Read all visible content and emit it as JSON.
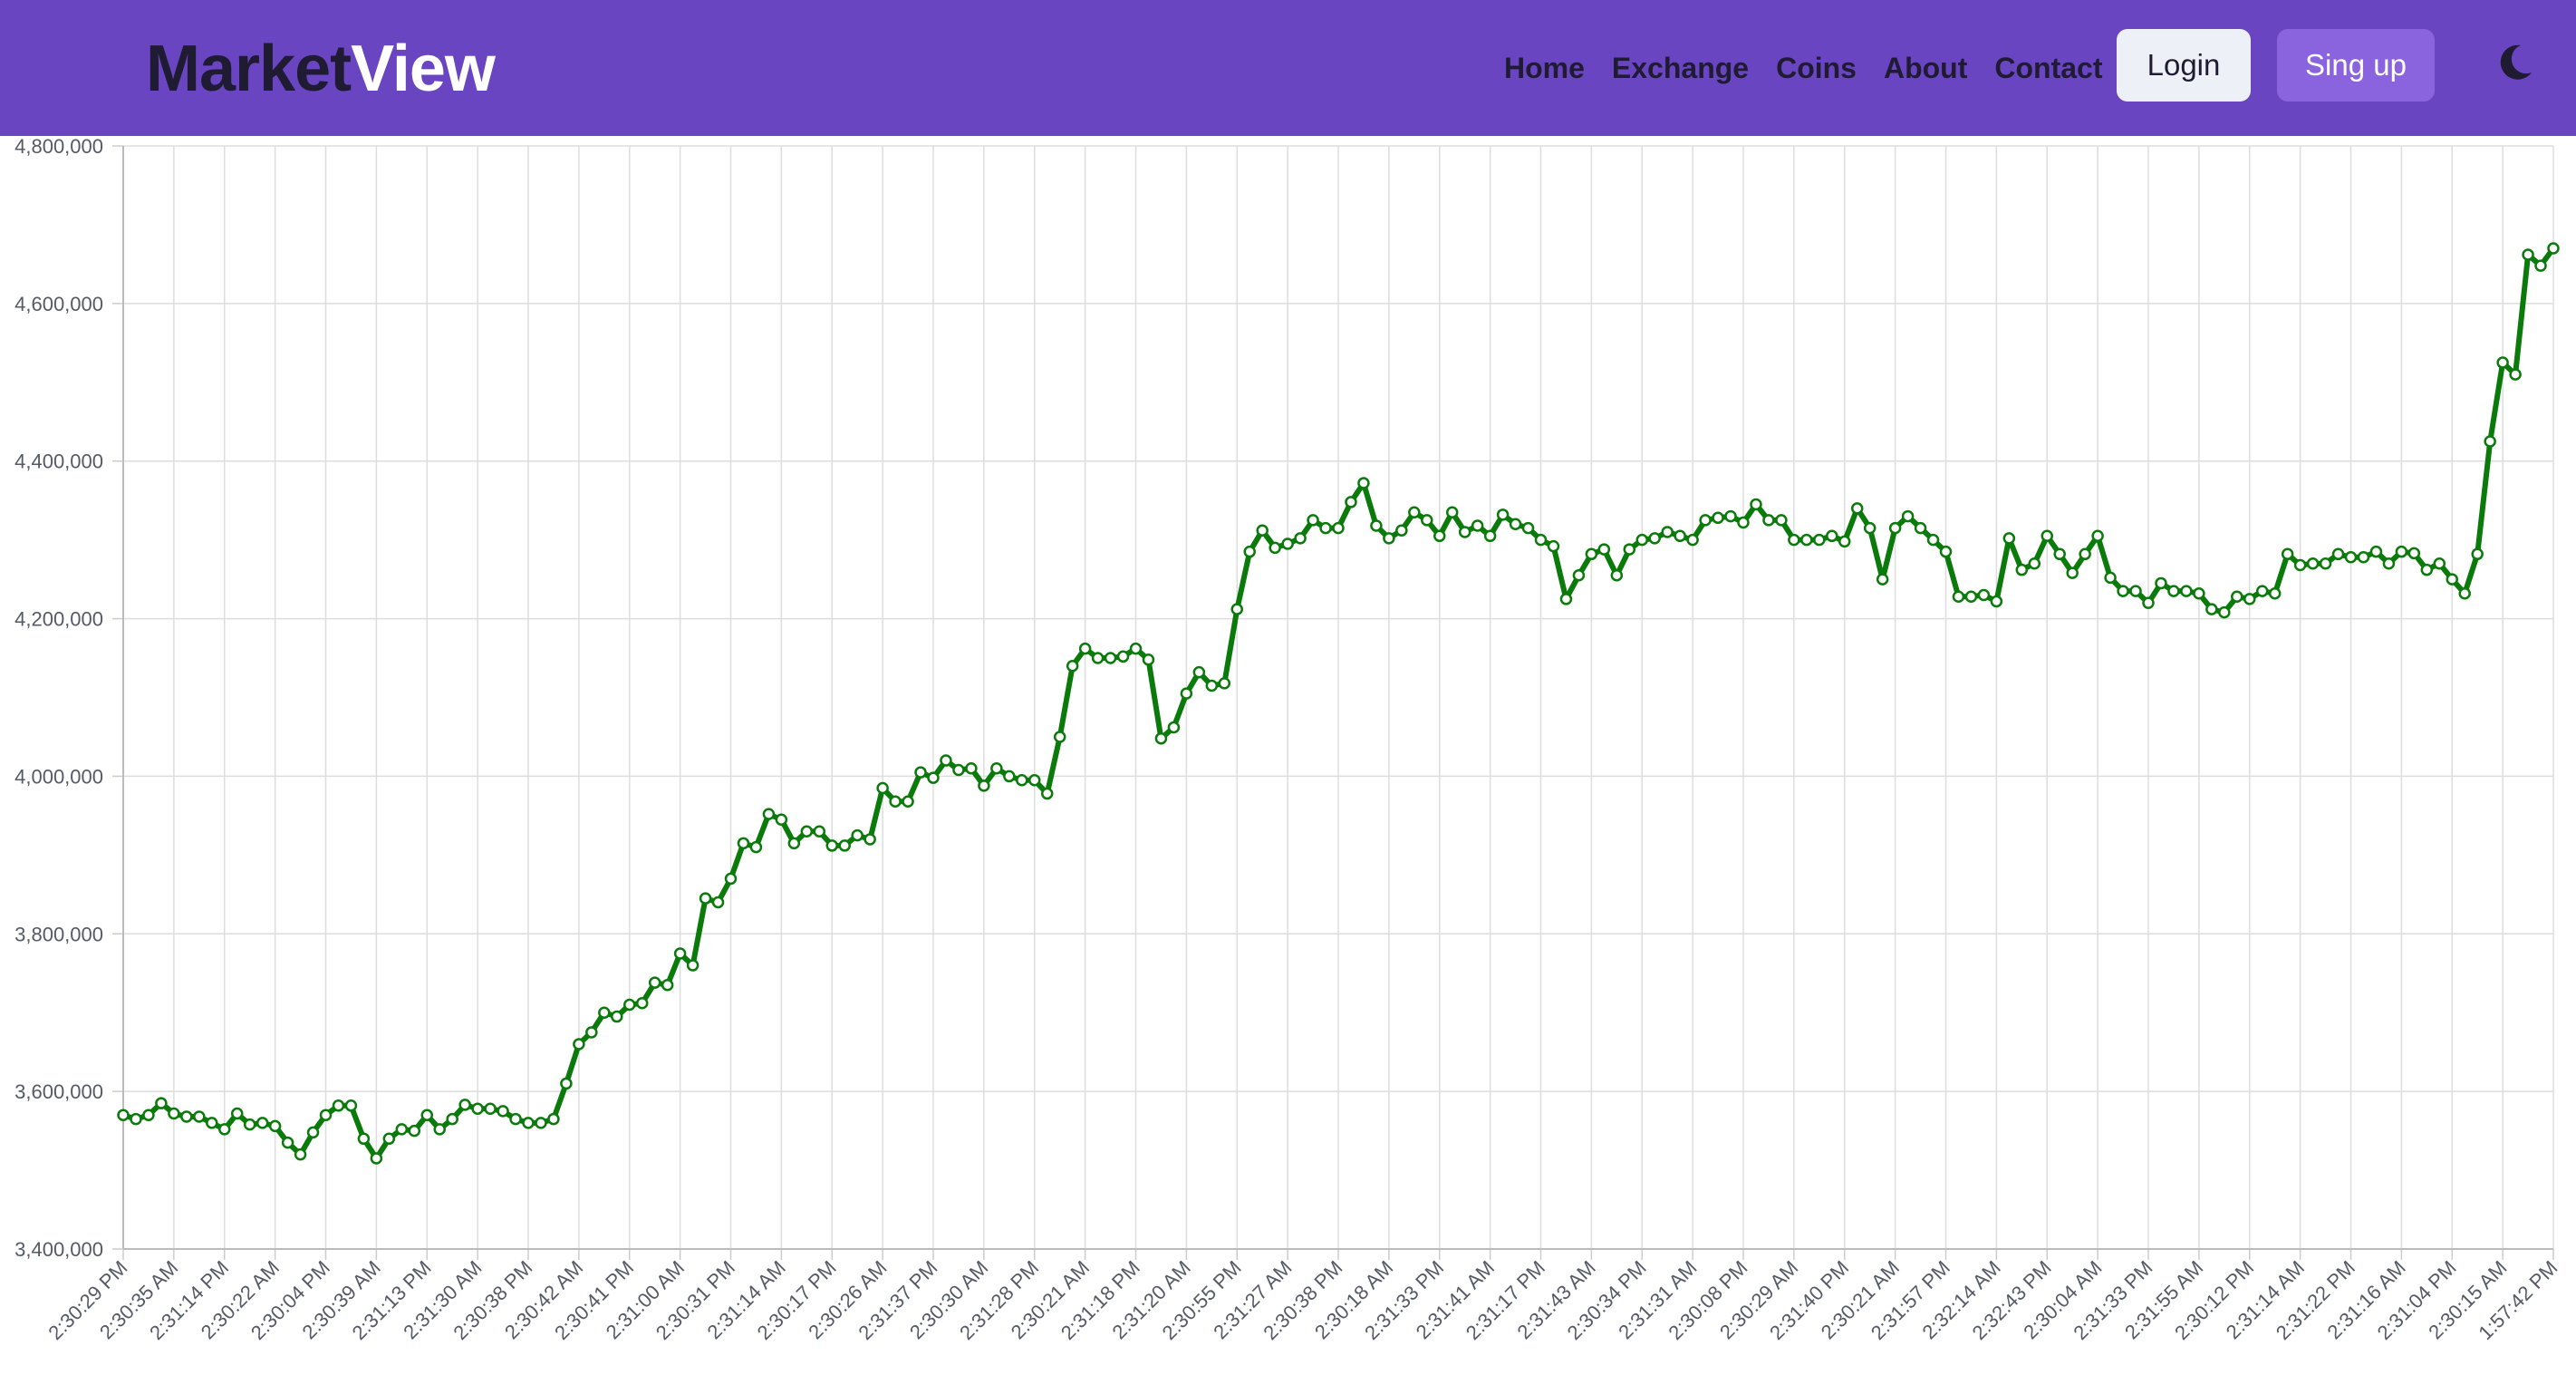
{
  "navbar": {
    "brand_part1": "Market",
    "brand_part2": "View",
    "links": [
      "Home",
      "Exchange",
      "Coins",
      "About",
      "Contact"
    ],
    "login_label": "Login",
    "signup_label": "Sing up",
    "theme_icon": "moon-icon"
  },
  "colors": {
    "navbar_bg": "#6a45c2",
    "line": "#0a7a0a",
    "brand_dark": "#1f1b33"
  },
  "chart_data": {
    "type": "line",
    "title": "",
    "xlabel": "",
    "ylabel": "",
    "ylim": [
      3400000,
      4800000
    ],
    "yticks": [
      3400000,
      3600000,
      3800000,
      4000000,
      4200000,
      4400000,
      4600000,
      4800000
    ],
    "ytick_labels": [
      "3,400,000",
      "3,600,000",
      "3,800,000",
      "4,000,000",
      "4,200,000",
      "4,400,000",
      "4,600,000",
      "4,800,000"
    ],
    "grid": true,
    "xtick_labels": [
      "2:30:29 PM",
      "2:30:35 AM",
      "2:31:14 PM",
      "2:30:22 AM",
      "2:30:04 PM",
      "2:30:39 AM",
      "2:31:13 PM",
      "2:31:30 AM",
      "2:30:38 PM",
      "2:30:42 AM",
      "2:30:41 PM",
      "2:31:00 AM",
      "2:30:31 PM",
      "2:31:14 AM",
      "2:30:17 PM",
      "2:30:26 AM",
      "2:31:37 PM",
      "2:30:30 AM",
      "2:31:28 PM",
      "2:30:21 AM",
      "2:31:18 PM",
      "2:31:20 AM",
      "2:30:55 PM",
      "2:31:27 AM",
      "2:30:38 PM",
      "2:30:18 AM",
      "2:31:33 PM",
      "2:31:41 AM",
      "2:31:17 PM",
      "2:31:43 AM",
      "2:30:34 PM",
      "2:31:31 AM",
      "2:30:08 PM",
      "2:30:29 AM",
      "2:31:40 PM",
      "2:30:21 AM",
      "2:31:57 PM",
      "2:32:14 AM",
      "2:32:43 PM",
      "2:30:04 AM",
      "2:31:33 PM",
      "2:31:55 AM",
      "2:30:12 PM",
      "2:31:14 AM",
      "2:31:22 PM",
      "2:31:16 AM",
      "2:31:04 PM",
      "2:30:15 AM",
      "1:57:42 PM"
    ],
    "series": [
      {
        "values": [
          3570000,
          3565000,
          3570000,
          3585000,
          3572000,
          3568000,
          3568000,
          3560000,
          3552000,
          3572000,
          3558000,
          3560000,
          3556000,
          3535000,
          3520000,
          3548000,
          3570000,
          3582000,
          3582000,
          3540000,
          3515000,
          3540000,
          3552000,
          3550000,
          3570000,
          3552000,
          3565000,
          3583000,
          3578000,
          3578000,
          3575000,
          3565000,
          3560000,
          3560000,
          3565000,
          3610000,
          3660000,
          3675000,
          3700000,
          3695000,
          3710000,
          3712000,
          3738000,
          3735000,
          3775000,
          3760000,
          3845000,
          3840000,
          3870000,
          3915000,
          3910000,
          3952000,
          3945000,
          3915000,
          3930000,
          3930000,
          3912000,
          3912000,
          3925000,
          3920000,
          3985000,
          3968000,
          3968000,
          4005000,
          3998000,
          4020000,
          4008000,
          4010000,
          3988000,
          4010000,
          4000000,
          3995000,
          3995000,
          3978000,
          4050000,
          4140000,
          4162000,
          4150000,
          4150000,
          4152000,
          4162000,
          4148000,
          4048000,
          4062000,
          4105000,
          4132000,
          4115000,
          4118000,
          4212000,
          4285000,
          4312000,
          4290000,
          4295000,
          4302000,
          4325000,
          4315000,
          4315000,
          4348000,
          4372000,
          4318000,
          4302000,
          4312000,
          4335000,
          4325000,
          4305000,
          4335000,
          4310000,
          4318000,
          4305000,
          4332000,
          4320000,
          4315000,
          4300000,
          4292000,
          4225000,
          4255000,
          4282000,
          4288000,
          4255000,
          4288000,
          4300000,
          4302000,
          4310000,
          4305000,
          4300000,
          4325000,
          4328000,
          4330000,
          4322000,
          4345000,
          4325000,
          4325000,
          4300000,
          4300000,
          4300000,
          4305000,
          4298000,
          4340000,
          4315000,
          4250000,
          4315000,
          4330000,
          4315000,
          4300000,
          4285000,
          4228000,
          4228000,
          4230000,
          4222000,
          4302000,
          4262000,
          4270000,
          4305000,
          4282000,
          4258000,
          4282000,
          4305000,
          4252000,
          4235000,
          4235000,
          4220000,
          4245000,
          4235000,
          4235000,
          4232000,
          4212000,
          4208000,
          4228000,
          4225000,
          4235000,
          4232000,
          4282000,
          4268000,
          4270000,
          4270000,
          4282000,
          4278000,
          4278000,
          4285000,
          4270000,
          4285000,
          4283000,
          4262000,
          4270000,
          4250000,
          4232000,
          4282000,
          4425000,
          4525000,
          4510000,
          4662000,
          4648000,
          4670000
        ]
      }
    ]
  }
}
